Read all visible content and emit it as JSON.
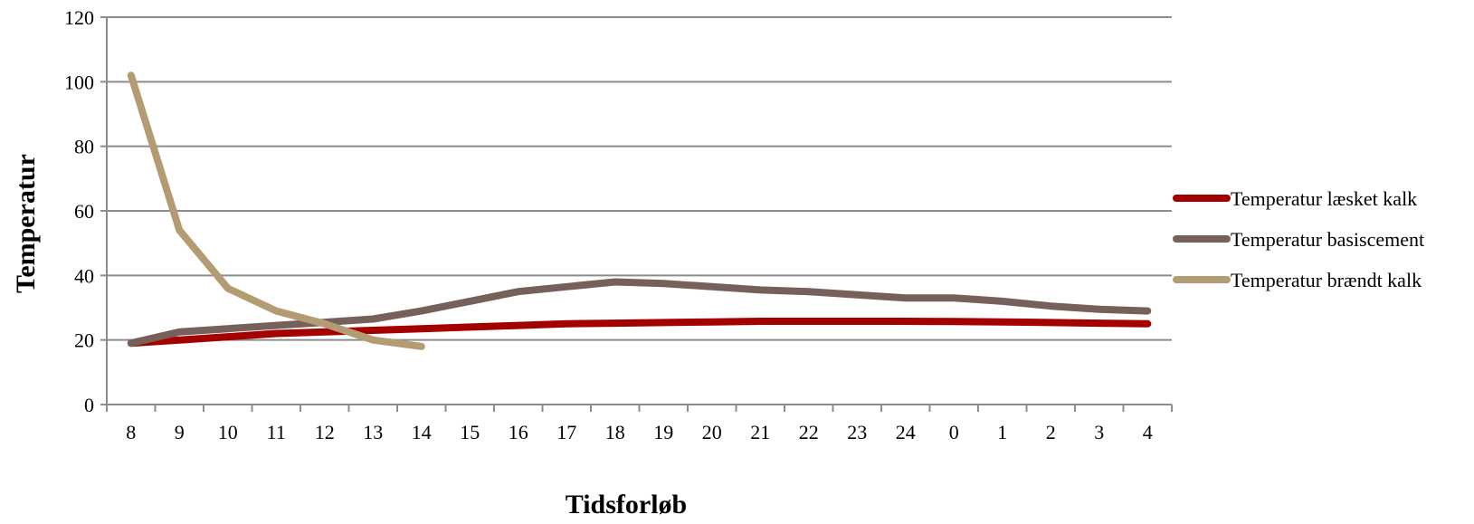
{
  "chart_data": {
    "type": "line",
    "title": "",
    "xlabel": "Tidsforløb",
    "ylabel": "Temperatur",
    "ylim": [
      0,
      120
    ],
    "yticks": [
      0,
      20,
      40,
      60,
      80,
      100,
      120
    ],
    "grid": true,
    "legend_position": "right",
    "categories": [
      "8",
      "9",
      "10",
      "11",
      "12",
      "13",
      "14",
      "15",
      "16",
      "17",
      "18",
      "19",
      "20",
      "21",
      "22",
      "23",
      "24",
      "0",
      "1",
      "2",
      "3",
      "4"
    ],
    "series": [
      {
        "name": "Temperatur læsket kalk",
        "color": "#a50000",
        "values": [
          19,
          20,
          21,
          22,
          22.5,
          23,
          23.5,
          24,
          24.5,
          25,
          25.2,
          25.4,
          25.6,
          25.8,
          25.8,
          25.8,
          25.8,
          25.7,
          25.6,
          25.4,
          25.2,
          25
        ]
      },
      {
        "name": "Temperatur basiscement",
        "color": "#76615a",
        "values": [
          19,
          22.5,
          23.5,
          24.5,
          25.5,
          26.5,
          29,
          32,
          35,
          36.5,
          38,
          37.5,
          36.5,
          35.5,
          35,
          34,
          33,
          33,
          32,
          30.5,
          29.5,
          29
        ]
      },
      {
        "name": "Temperatur brændt kalk",
        "color": "#b39b73",
        "values": [
          102,
          54,
          36,
          29,
          25,
          20,
          18,
          null,
          null,
          null,
          null,
          null,
          null,
          null,
          null,
          null,
          null,
          null,
          null,
          null,
          null,
          null
        ]
      }
    ]
  }
}
